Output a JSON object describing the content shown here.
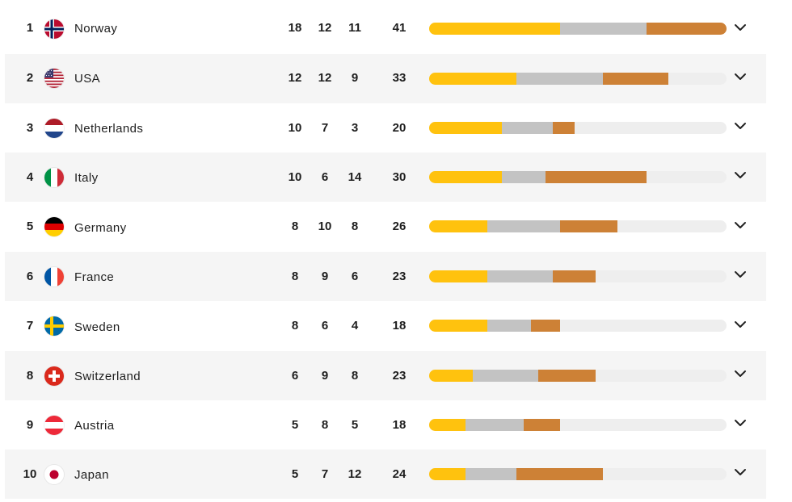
{
  "colors": {
    "gold": "#ffc20e",
    "silver": "#c3c3c3",
    "bronze": "#cd8136",
    "track": "#eeeeee"
  },
  "scale_max": 41,
  "rows": [
    {
      "rank": "1",
      "country": "Norway",
      "flag": "norway-flag-icon",
      "gold": 18,
      "silver": 12,
      "bronze": 11,
      "total": 41
    },
    {
      "rank": "2",
      "country": "USA",
      "flag": "usa-flag-icon",
      "gold": 12,
      "silver": 12,
      "bronze": 9,
      "total": 33
    },
    {
      "rank": "3",
      "country": "Netherlands",
      "flag": "netherlands-flag-icon",
      "gold": 10,
      "silver": 7,
      "bronze": 3,
      "total": 20
    },
    {
      "rank": "4",
      "country": "Italy",
      "flag": "italy-flag-icon",
      "gold": 10,
      "silver": 6,
      "bronze": 14,
      "total": 30
    },
    {
      "rank": "5",
      "country": "Germany",
      "flag": "germany-flag-icon",
      "gold": 8,
      "silver": 10,
      "bronze": 8,
      "total": 26
    },
    {
      "rank": "6",
      "country": "France",
      "flag": "france-flag-icon",
      "gold": 8,
      "silver": 9,
      "bronze": 6,
      "total": 23
    },
    {
      "rank": "7",
      "country": "Sweden",
      "flag": "sweden-flag-icon",
      "gold": 8,
      "silver": 6,
      "bronze": 4,
      "total": 18
    },
    {
      "rank": "8",
      "country": "Switzerland",
      "flag": "switzerland-flag-icon",
      "gold": 6,
      "silver": 9,
      "bronze": 8,
      "total": 23
    },
    {
      "rank": "9",
      "country": "Austria",
      "flag": "austria-flag-icon",
      "gold": 5,
      "silver": 8,
      "bronze": 5,
      "total": 18
    },
    {
      "rank": "10",
      "country": "Japan",
      "flag": "japan-flag-icon",
      "gold": 5,
      "silver": 7,
      "bronze": 12,
      "total": 24
    }
  ]
}
